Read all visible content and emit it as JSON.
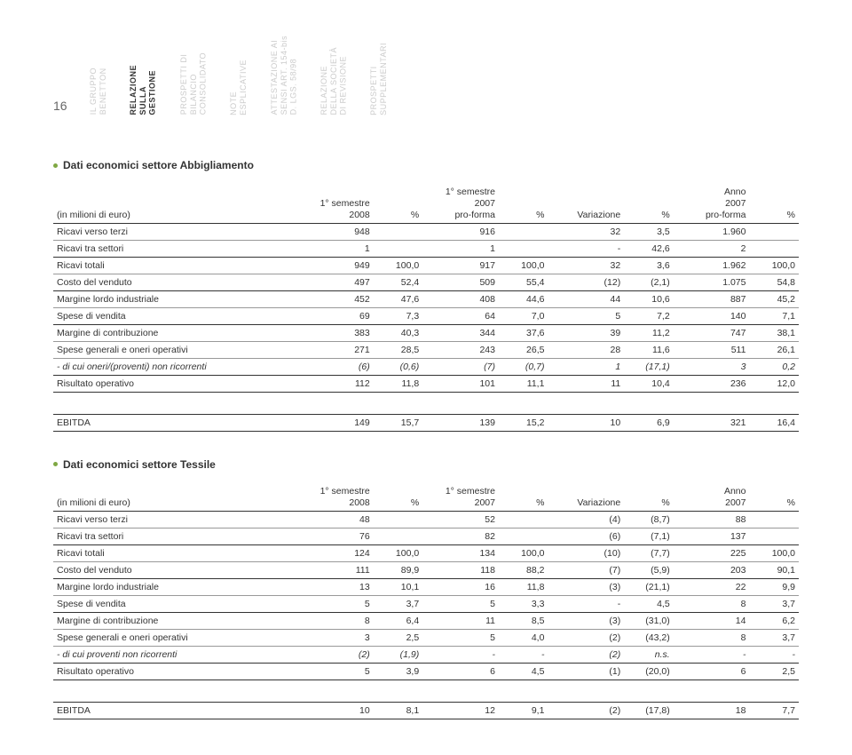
{
  "page_number": "16",
  "nav": [
    "IL GRUPPO\nBENETTON",
    "RELAZIONE\nSULLA\nGESTIONE",
    "PROSPETTI DI\nBILANCIO\nCONSOLIDATO",
    "NOTE\nESPLICATIVE",
    "ATTESTAZIONE AI\nSENSI ART. 154-bis\nD. LGS. 58/98",
    "RELAZIONE\nDELLA SOCIETÀ\nDI REVISIONE",
    "PROSPETTI\nSUPPLEMENTARI"
  ],
  "bullet_color": "#7fa843",
  "t1": {
    "title": "Dati economici settore Abbigliamento",
    "unit": "(in milioni di euro)",
    "headers": [
      "1° semestre\n2008",
      "%",
      "1° semestre\n2007\npro-forma",
      "%",
      "Variazione",
      "%",
      "Anno\n2007\npro-forma",
      "%"
    ],
    "rows": [
      {
        "l": "Ricavi verso terzi",
        "c": [
          "948",
          "",
          "916",
          "",
          "32",
          "3,5",
          "1.960",
          ""
        ]
      },
      {
        "l": "Ricavi tra settori",
        "c": [
          "1",
          "",
          "1",
          "",
          "-",
          "42,6",
          "2",
          ""
        ]
      },
      {
        "l": "Ricavi totali",
        "c": [
          "949",
          "100,0",
          "917",
          "100,0",
          "32",
          "3,6",
          "1.962",
          "100,0"
        ],
        "heavy": true
      },
      {
        "l": "Costo del venduto",
        "c": [
          "497",
          "52,4",
          "509",
          "55,4",
          "(12)",
          "(2,1)",
          "1.075",
          "54,8"
        ]
      },
      {
        "l": "Margine lordo industriale",
        "c": [
          "452",
          "47,6",
          "408",
          "44,6",
          "44",
          "10,6",
          "887",
          "45,2"
        ],
        "heavy": true
      },
      {
        "l": "Spese di vendita",
        "c": [
          "69",
          "7,3",
          "64",
          "7,0",
          "5",
          "7,2",
          "140",
          "7,1"
        ]
      },
      {
        "l": "Margine di contribuzione",
        "c": [
          "383",
          "40,3",
          "344",
          "37,6",
          "39",
          "11,2",
          "747",
          "38,1"
        ],
        "heavy": true
      },
      {
        "l": "Spese generali e oneri operativi",
        "c": [
          "271",
          "28,5",
          "243",
          "26,5",
          "28",
          "11,6",
          "511",
          "26,1"
        ]
      },
      {
        "l": "- di cui oneri/(proventi) non ricorrenti",
        "c": [
          "(6)",
          "(0,6)",
          "(7)",
          "(0,7)",
          "1",
          "(17,1)",
          "3",
          "0,2"
        ],
        "italic": true
      },
      {
        "l": "Risultato operativo",
        "c": [
          "112",
          "11,8",
          "101",
          "11,1",
          "11",
          "10,4",
          "236",
          "12,0"
        ],
        "heavy": true,
        "bottom": true
      }
    ],
    "ebitda": {
      "l": "EBITDA",
      "c": [
        "149",
        "15,7",
        "139",
        "15,2",
        "10",
        "6,9",
        "321",
        "16,4"
      ]
    }
  },
  "t2": {
    "title": "Dati economici settore Tessile",
    "unit": "(in milioni di euro)",
    "headers": [
      "1° semestre\n2008",
      "%",
      "1° semestre\n2007",
      "%",
      "Variazione",
      "%",
      "Anno\n2007",
      "%"
    ],
    "rows": [
      {
        "l": "Ricavi verso terzi",
        "c": [
          "48",
          "",
          "52",
          "",
          "(4)",
          "(8,7)",
          "88",
          ""
        ]
      },
      {
        "l": "Ricavi tra settori",
        "c": [
          "76",
          "",
          "82",
          "",
          "(6)",
          "(7,1)",
          "137",
          ""
        ]
      },
      {
        "l": "Ricavi totali",
        "c": [
          "124",
          "100,0",
          "134",
          "100,0",
          "(10)",
          "(7,7)",
          "225",
          "100,0"
        ],
        "heavy": true
      },
      {
        "l": "Costo del venduto",
        "c": [
          "111",
          "89,9",
          "118",
          "88,2",
          "(7)",
          "(5,9)",
          "203",
          "90,1"
        ]
      },
      {
        "l": "Margine lordo industriale",
        "c": [
          "13",
          "10,1",
          "16",
          "11,8",
          "(3)",
          "(21,1)",
          "22",
          "9,9"
        ],
        "heavy": true
      },
      {
        "l": "Spese di vendita",
        "c": [
          "5",
          "3,7",
          "5",
          "3,3",
          "-",
          "4,5",
          "8",
          "3,7"
        ]
      },
      {
        "l": "Margine di contribuzione",
        "c": [
          "8",
          "6,4",
          "11",
          "8,5",
          "(3)",
          "(31,0)",
          "14",
          "6,2"
        ],
        "heavy": true
      },
      {
        "l": "Spese generali e oneri operativi",
        "c": [
          "3",
          "2,5",
          "5",
          "4,0",
          "(2)",
          "(43,2)",
          "8",
          "3,7"
        ]
      },
      {
        "l": "- di cui proventi non ricorrenti",
        "c": [
          "(2)",
          "(1,9)",
          "-",
          "-",
          "(2)",
          "n.s.",
          "-",
          "-"
        ],
        "italic": true
      },
      {
        "l": "Risultato operativo",
        "c": [
          "5",
          "3,9",
          "6",
          "4,5",
          "(1)",
          "(20,0)",
          "6",
          "2,5"
        ],
        "heavy": true,
        "bottom": true
      }
    ],
    "ebitda": {
      "l": "EBITDA",
      "c": [
        "10",
        "8,1",
        "12",
        "9,1",
        "(2)",
        "(17,8)",
        "18",
        "7,7"
      ]
    }
  }
}
